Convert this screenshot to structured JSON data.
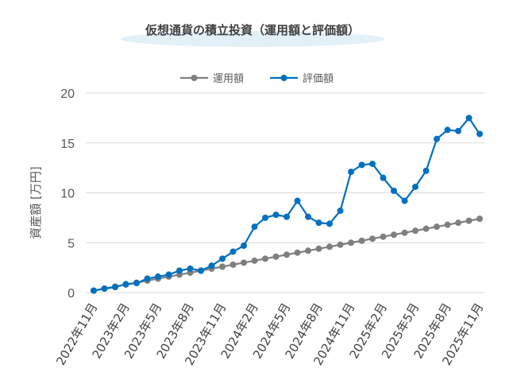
{
  "chart_data": {
    "type": "line",
    "title": "仮想通貨の積立投資（運用額と評価額）",
    "ylabel": "資産額 [万円]",
    "ylim": [
      0,
      20
    ],
    "yticks": [
      0,
      5,
      10,
      15,
      20
    ],
    "grid": true,
    "legend_position": "top",
    "x": [
      "2022年11月",
      "2022年12月",
      "2023年1月",
      "2023年2月",
      "2023年3月",
      "2023年4月",
      "2023年5月",
      "2023年6月",
      "2023年7月",
      "2023年8月",
      "2023年9月",
      "2023年10月",
      "2023年11月",
      "2023年12月",
      "2024年1月",
      "2024年2月",
      "2024年3月",
      "2024年4月",
      "2024年5月",
      "2024年6月",
      "2024年7月",
      "2024年8月",
      "2024年9月",
      "2024年10月",
      "2024年11月",
      "2024年12月",
      "2025年1月",
      "2025年2月",
      "2025年3月",
      "2025年4月",
      "2025年5月",
      "2025年6月",
      "2025年7月",
      "2025年8月",
      "2025年9月",
      "2025年10月",
      "2025年11月"
    ],
    "xtick_labels": [
      "2022年11月",
      "2023年2月",
      "2023年5月",
      "2023年8月",
      "2023年11月",
      "2024年2月",
      "2024年5月",
      "2024年8月",
      "2024年11月",
      "2025年2月",
      "2025年5月",
      "2025年8月",
      "2025年11月"
    ],
    "xtick_every": 3,
    "series": [
      {
        "name": "運用額",
        "color": "#7f7f7f",
        "values": [
          0.2,
          0.4,
          0.6,
          0.8,
          1.0,
          1.2,
          1.4,
          1.6,
          1.8,
          2.0,
          2.2,
          2.4,
          2.6,
          2.8,
          3.0,
          3.2,
          3.4,
          3.6,
          3.8,
          4.0,
          4.2,
          4.4,
          4.6,
          4.8,
          5.0,
          5.2,
          5.4,
          5.6,
          5.8,
          6.0,
          6.2,
          6.4,
          6.6,
          6.8,
          7.0,
          7.2,
          7.4
        ]
      },
      {
        "name": "評価額",
        "color": "#0070c0",
        "values": [
          0.2,
          0.4,
          0.55,
          0.85,
          0.95,
          1.4,
          1.6,
          1.8,
          2.2,
          2.4,
          2.2,
          2.7,
          3.4,
          4.1,
          4.7,
          6.6,
          7.5,
          7.8,
          7.6,
          9.2,
          7.6,
          7.0,
          6.9,
          8.2,
          12.1,
          12.8,
          12.9,
          11.5,
          10.2,
          9.2,
          10.6,
          12.2,
          15.4,
          16.3,
          16.2,
          17.5,
          15.9
        ]
      }
    ]
  }
}
